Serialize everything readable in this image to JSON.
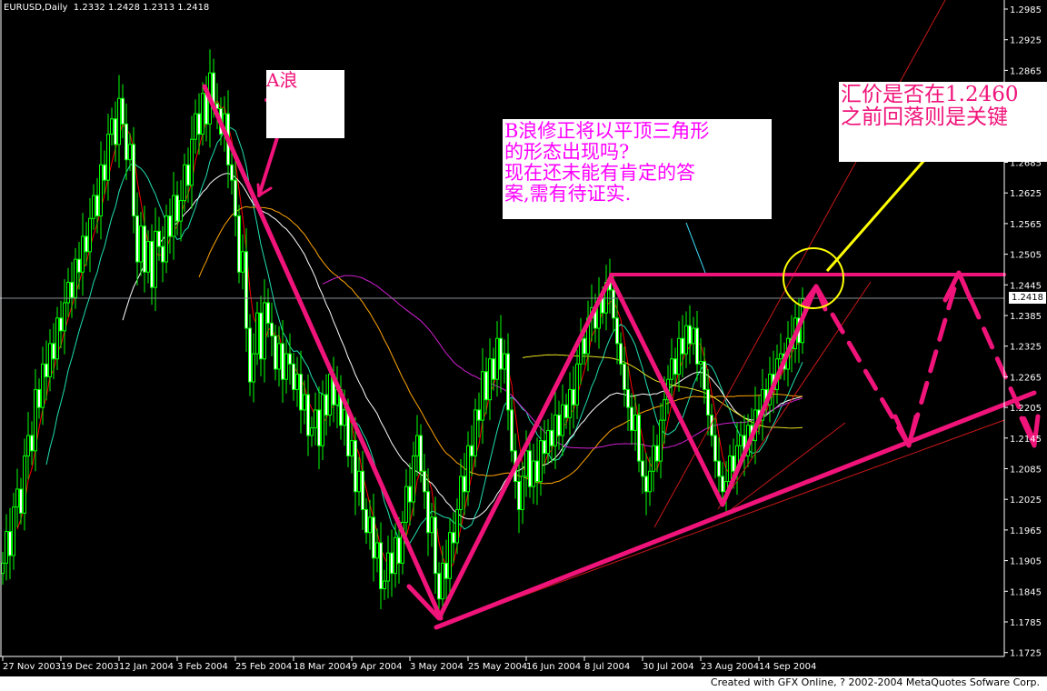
{
  "header": {
    "symbol_timeframe": "EURUSD,Daily",
    "ohlc": "1.2332 1.2428 1.2313 1.2418"
  },
  "footer": {
    "credit": "Created with GFX Online, ? 2002-2004 MetaQuotes Sofware Corp."
  },
  "annotations": {
    "wave_a": "A浪",
    "wave_b_lines": [
      "B浪修正将以平顶三角形",
      "的形态出现吗?",
      "现在还未能有肯定的答",
      "案,需有待证实."
    ],
    "key_level_lines": [
      "汇价是否在1.2460",
      "之前回落则是关键"
    ]
  },
  "colors": {
    "background": "#000000",
    "candle": "#00ff00",
    "annotation_pink": "#f0147a",
    "annotation_magenta": "#ff00ff",
    "circle": "#ffff00",
    "axis": "#ffffff"
  },
  "chart_data": {
    "type": "candlestick",
    "symbol": "EURUSD",
    "timeframe": "Daily",
    "current_price": "1.2418",
    "key_level": 1.246,
    "ylim": [
      1.17,
      1.3
    ],
    "y_ticks": [
      "1.2985",
      "1.2925",
      "1.2865",
      "1.2805",
      "1.2745",
      "1.2685",
      "1.2625",
      "1.2565",
      "1.2505",
      "1.2445",
      "1.2385",
      "1.2325",
      "1.2265",
      "1.2205",
      "1.2145",
      "1.2085",
      "1.2025",
      "1.1965",
      "1.1905",
      "1.1845",
      "1.1785",
      "1.1725"
    ],
    "x_ticks": [
      "27 Nov 2003",
      "19 Dec 2003",
      "12 Jan 2004",
      "3 Feb 2004",
      "25 Feb 2004",
      "18 Mar 2004",
      "9 Apr 2004",
      "3 May 2004",
      "25 May 2004",
      "16 Jun 2004",
      "8 Jul 2004",
      "30 Jul 2004",
      "23 Aug 2004",
      "14 Sep 2004"
    ],
    "closes": [
      1.19,
      1.1962,
      1.1915,
      1.201,
      1.2045,
      1.1998,
      1.211,
      1.215,
      1.212,
      1.224,
      1.2205,
      1.229,
      1.2265,
      1.233,
      1.23,
      1.238,
      1.2355,
      1.241,
      1.245,
      1.242,
      1.2495,
      1.247,
      1.254,
      1.251,
      1.2575,
      1.262,
      1.258,
      1.268,
      1.265,
      1.274,
      1.277,
      1.272,
      1.281,
      1.276,
      1.269,
      1.272,
      1.258,
      1.249,
      1.256,
      1.247,
      1.253,
      1.244,
      1.255,
      1.252,
      1.249,
      1.258,
      1.254,
      1.262,
      1.257,
      1.261,
      1.268,
      1.264,
      1.273,
      1.278,
      1.274,
      1.282,
      1.276,
      1.286,
      1.28,
      1.279,
      1.274,
      1.278,
      1.268,
      1.265,
      1.258,
      1.247,
      1.251,
      1.236,
      1.2255,
      1.231,
      1.239,
      1.23,
      1.241,
      1.237,
      1.2345,
      1.228,
      1.233,
      1.226,
      1.231,
      1.229,
      1.224,
      1.227,
      1.22,
      1.223,
      1.215,
      1.2165,
      1.22,
      1.213,
      1.223,
      1.219,
      1.227,
      1.221,
      1.224,
      1.217,
      1.22,
      1.211,
      1.214,
      1.204,
      1.208,
      1.2005,
      1.196,
      1.199,
      1.191,
      1.194,
      1.185,
      1.1865,
      1.192,
      1.188,
      1.195,
      1.19,
      1.198,
      1.205,
      1.202,
      1.211,
      1.215,
      1.208,
      1.204,
      1.196,
      1.199,
      1.188,
      1.183,
      1.19,
      1.187,
      1.196,
      1.194,
      1.2005,
      1.207,
      1.204,
      1.213,
      1.211,
      1.22,
      1.218,
      1.2275,
      1.222,
      1.23,
      1.226,
      1.234,
      1.228,
      1.231,
      1.22,
      1.212,
      1.206,
      1.2005,
      1.207,
      1.212,
      1.205,
      1.21,
      1.206,
      1.214,
      1.2115,
      1.216,
      1.213,
      1.219,
      1.215,
      1.221,
      1.2185,
      1.224,
      1.221,
      1.229,
      1.234,
      1.231,
      1.238,
      1.24,
      1.236,
      1.242,
      1.239,
      1.245,
      1.2435,
      1.238,
      1.233,
      1.229,
      1.224,
      1.2205,
      1.216,
      1.219,
      1.21,
      1.207,
      1.204,
      1.208,
      1.213,
      1.21,
      1.218,
      1.222,
      1.226,
      1.23,
      1.227,
      1.234,
      1.231,
      1.2365,
      1.233,
      1.236,
      1.229,
      1.2295,
      1.224,
      1.219,
      1.215,
      1.21,
      1.207,
      1.204,
      1.206,
      1.211,
      1.208,
      1.213,
      1.215,
      1.211,
      1.217,
      1.214,
      1.22,
      1.218,
      1.224,
      1.221,
      1.227,
      1.224,
      1.23,
      1.231,
      1.228,
      1.234,
      1.232,
      1.238,
      1.2332,
      1.2418
    ],
    "moving_averages": [
      {
        "period": 5,
        "color": "#ff0000"
      },
      {
        "period": 13,
        "color": "#20e0b0"
      },
      {
        "period": 34,
        "color": "#ffffff"
      },
      {
        "period": 55,
        "color": "#ffa500"
      },
      {
        "period": 89,
        "color": "#d020d0"
      },
      {
        "period": 144,
        "color": "#e8e020"
      }
    ]
  }
}
